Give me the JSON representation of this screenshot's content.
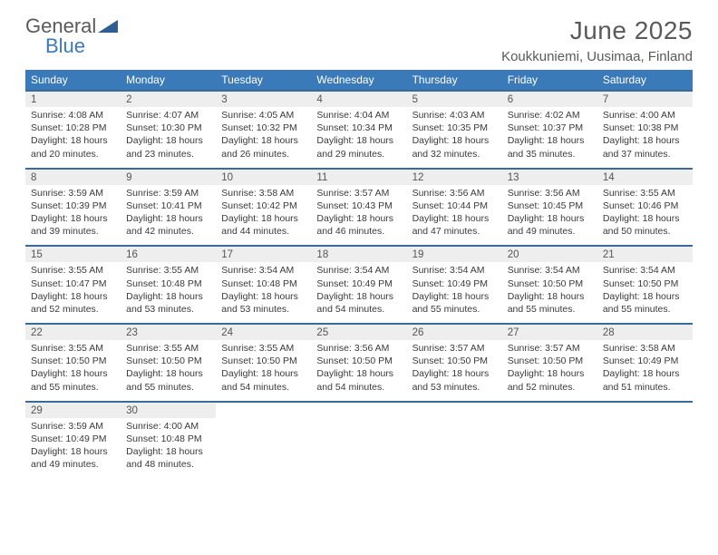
{
  "logo": {
    "word1": "General",
    "word2": "Blue"
  },
  "title": "June 2025",
  "location": "Koukkuniemi, Uusimaa, Finland",
  "colors": {
    "header_bg": "#3a7ab8",
    "header_text": "#ffffff",
    "daynum_bg": "#eeeeee",
    "row_border": "#3a6a9a",
    "body_text": "#3a3a3a",
    "title_text": "#5a5a5a",
    "logo_blue": "#3a7ab8",
    "background": "#ffffff"
  },
  "fonts": {
    "title_size_pt": 21,
    "location_size_pt": 11,
    "header_size_pt": 9,
    "daynum_size_pt": 9,
    "detail_size_pt": 8
  },
  "day_headers": [
    "Sunday",
    "Monday",
    "Tuesday",
    "Wednesday",
    "Thursday",
    "Friday",
    "Saturday"
  ],
  "weeks": [
    [
      {
        "n": "1",
        "sr": "Sunrise: 4:08 AM",
        "ss": "Sunset: 10:28 PM",
        "d1": "Daylight: 18 hours",
        "d2": "and 20 minutes."
      },
      {
        "n": "2",
        "sr": "Sunrise: 4:07 AM",
        "ss": "Sunset: 10:30 PM",
        "d1": "Daylight: 18 hours",
        "d2": "and 23 minutes."
      },
      {
        "n": "3",
        "sr": "Sunrise: 4:05 AM",
        "ss": "Sunset: 10:32 PM",
        "d1": "Daylight: 18 hours",
        "d2": "and 26 minutes."
      },
      {
        "n": "4",
        "sr": "Sunrise: 4:04 AM",
        "ss": "Sunset: 10:34 PM",
        "d1": "Daylight: 18 hours",
        "d2": "and 29 minutes."
      },
      {
        "n": "5",
        "sr": "Sunrise: 4:03 AM",
        "ss": "Sunset: 10:35 PM",
        "d1": "Daylight: 18 hours",
        "d2": "and 32 minutes."
      },
      {
        "n": "6",
        "sr": "Sunrise: 4:02 AM",
        "ss": "Sunset: 10:37 PM",
        "d1": "Daylight: 18 hours",
        "d2": "and 35 minutes."
      },
      {
        "n": "7",
        "sr": "Sunrise: 4:00 AM",
        "ss": "Sunset: 10:38 PM",
        "d1": "Daylight: 18 hours",
        "d2": "and 37 minutes."
      }
    ],
    [
      {
        "n": "8",
        "sr": "Sunrise: 3:59 AM",
        "ss": "Sunset: 10:39 PM",
        "d1": "Daylight: 18 hours",
        "d2": "and 39 minutes."
      },
      {
        "n": "9",
        "sr": "Sunrise: 3:59 AM",
        "ss": "Sunset: 10:41 PM",
        "d1": "Daylight: 18 hours",
        "d2": "and 42 minutes."
      },
      {
        "n": "10",
        "sr": "Sunrise: 3:58 AM",
        "ss": "Sunset: 10:42 PM",
        "d1": "Daylight: 18 hours",
        "d2": "and 44 minutes."
      },
      {
        "n": "11",
        "sr": "Sunrise: 3:57 AM",
        "ss": "Sunset: 10:43 PM",
        "d1": "Daylight: 18 hours",
        "d2": "and 46 minutes."
      },
      {
        "n": "12",
        "sr": "Sunrise: 3:56 AM",
        "ss": "Sunset: 10:44 PM",
        "d1": "Daylight: 18 hours",
        "d2": "and 47 minutes."
      },
      {
        "n": "13",
        "sr": "Sunrise: 3:56 AM",
        "ss": "Sunset: 10:45 PM",
        "d1": "Daylight: 18 hours",
        "d2": "and 49 minutes."
      },
      {
        "n": "14",
        "sr": "Sunrise: 3:55 AM",
        "ss": "Sunset: 10:46 PM",
        "d1": "Daylight: 18 hours",
        "d2": "and 50 minutes."
      }
    ],
    [
      {
        "n": "15",
        "sr": "Sunrise: 3:55 AM",
        "ss": "Sunset: 10:47 PM",
        "d1": "Daylight: 18 hours",
        "d2": "and 52 minutes."
      },
      {
        "n": "16",
        "sr": "Sunrise: 3:55 AM",
        "ss": "Sunset: 10:48 PM",
        "d1": "Daylight: 18 hours",
        "d2": "and 53 minutes."
      },
      {
        "n": "17",
        "sr": "Sunrise: 3:54 AM",
        "ss": "Sunset: 10:48 PM",
        "d1": "Daylight: 18 hours",
        "d2": "and 53 minutes."
      },
      {
        "n": "18",
        "sr": "Sunrise: 3:54 AM",
        "ss": "Sunset: 10:49 PM",
        "d1": "Daylight: 18 hours",
        "d2": "and 54 minutes."
      },
      {
        "n": "19",
        "sr": "Sunrise: 3:54 AM",
        "ss": "Sunset: 10:49 PM",
        "d1": "Daylight: 18 hours",
        "d2": "and 55 minutes."
      },
      {
        "n": "20",
        "sr": "Sunrise: 3:54 AM",
        "ss": "Sunset: 10:50 PM",
        "d1": "Daylight: 18 hours",
        "d2": "and 55 minutes."
      },
      {
        "n": "21",
        "sr": "Sunrise: 3:54 AM",
        "ss": "Sunset: 10:50 PM",
        "d1": "Daylight: 18 hours",
        "d2": "and 55 minutes."
      }
    ],
    [
      {
        "n": "22",
        "sr": "Sunrise: 3:55 AM",
        "ss": "Sunset: 10:50 PM",
        "d1": "Daylight: 18 hours",
        "d2": "and 55 minutes."
      },
      {
        "n": "23",
        "sr": "Sunrise: 3:55 AM",
        "ss": "Sunset: 10:50 PM",
        "d1": "Daylight: 18 hours",
        "d2": "and 55 minutes."
      },
      {
        "n": "24",
        "sr": "Sunrise: 3:55 AM",
        "ss": "Sunset: 10:50 PM",
        "d1": "Daylight: 18 hours",
        "d2": "and 54 minutes."
      },
      {
        "n": "25",
        "sr": "Sunrise: 3:56 AM",
        "ss": "Sunset: 10:50 PM",
        "d1": "Daylight: 18 hours",
        "d2": "and 54 minutes."
      },
      {
        "n": "26",
        "sr": "Sunrise: 3:57 AM",
        "ss": "Sunset: 10:50 PM",
        "d1": "Daylight: 18 hours",
        "d2": "and 53 minutes."
      },
      {
        "n": "27",
        "sr": "Sunrise: 3:57 AM",
        "ss": "Sunset: 10:50 PM",
        "d1": "Daylight: 18 hours",
        "d2": "and 52 minutes."
      },
      {
        "n": "28",
        "sr": "Sunrise: 3:58 AM",
        "ss": "Sunset: 10:49 PM",
        "d1": "Daylight: 18 hours",
        "d2": "and 51 minutes."
      }
    ],
    [
      {
        "n": "29",
        "sr": "Sunrise: 3:59 AM",
        "ss": "Sunset: 10:49 PM",
        "d1": "Daylight: 18 hours",
        "d2": "and 49 minutes."
      },
      {
        "n": "30",
        "sr": "Sunrise: 4:00 AM",
        "ss": "Sunset: 10:48 PM",
        "d1": "Daylight: 18 hours",
        "d2": "and 48 minutes."
      },
      null,
      null,
      null,
      null,
      null
    ]
  ]
}
